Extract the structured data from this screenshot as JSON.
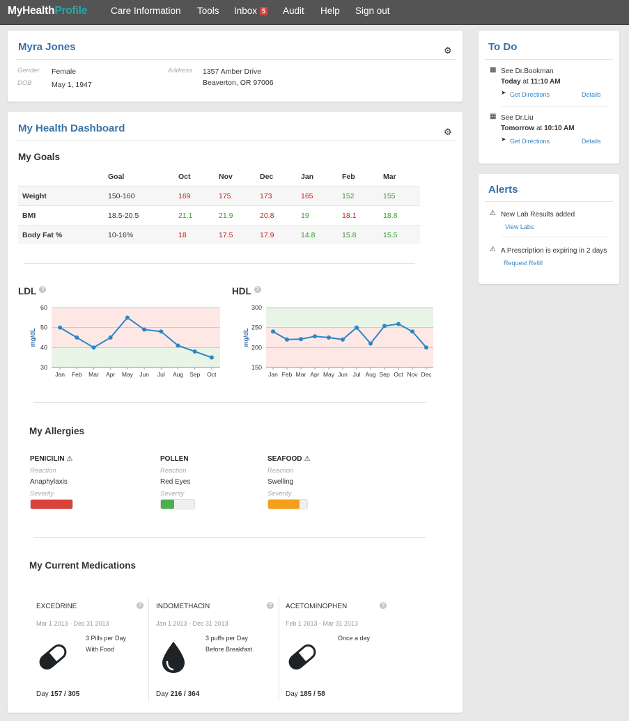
{
  "navbar": {
    "brand_main": "MyHealth",
    "brand_accent": "Profile",
    "items": [
      {
        "label": "Care Information"
      },
      {
        "label": "Tools"
      },
      {
        "label": "Inbox",
        "badge": "5"
      },
      {
        "label": "Audit"
      },
      {
        "label": "Help"
      },
      {
        "label": "Sign out"
      }
    ]
  },
  "patient": {
    "name": "Myra Jones",
    "gender_label": "Gender",
    "gender": "Female",
    "dob_label": "DOB",
    "dob": "May 1, 1947",
    "address_label": "Address",
    "address_line1": "1357 Amber Drive",
    "address_line2": "Beaverton, OR 97006"
  },
  "dashboard": {
    "title": "My Health Dashboard",
    "goals": {
      "title": "My Goals",
      "headers": [
        "Goal",
        "Oct",
        "Nov",
        "Dec",
        "Jan",
        "Feb",
        "Mar"
      ],
      "rows": [
        {
          "name": "Weight",
          "goal": "150-160",
          "values": [
            "169",
            "175",
            "173",
            "165",
            "152",
            "155"
          ],
          "status": [
            "bad",
            "bad",
            "bad",
            "bad",
            "good",
            "good"
          ]
        },
        {
          "name": "BMI",
          "goal": "18.5-20.5",
          "values": [
            "21.1",
            "21.9",
            "20.8",
            "19",
            "18.1",
            "18.8"
          ],
          "status": [
            "good",
            "good",
            "bad",
            "good",
            "bad",
            "good"
          ]
        },
        {
          "name": "Body Fat %",
          "goal": "10-16%",
          "values": [
            "18",
            "17.5",
            "17.9",
            "14.8",
            "15.8",
            "15.5"
          ],
          "status": [
            "bad",
            "bad",
            "bad",
            "good",
            "good",
            "good"
          ]
        }
      ]
    },
    "ldl": {
      "title": "LDL",
      "ylabel": "mg/dL",
      "yticks": [
        "60",
        "50",
        "40",
        "30"
      ],
      "months": [
        "Jan",
        "Feb",
        "Mar",
        "Apr",
        "May",
        "Jun",
        "Jul",
        "Aug",
        "Sep",
        "Oct"
      ]
    },
    "hdl": {
      "title": "HDL",
      "ylabel": "mg/dL",
      "yticks": [
        "300",
        "250",
        "200",
        "150"
      ],
      "months": [
        "Jan",
        "Feb",
        "Mar",
        "Apr",
        "May",
        "Jun",
        "Jul",
        "Aug",
        "Sep",
        "Oct",
        "Nov",
        "Dec"
      ]
    },
    "allergies": {
      "title": "My Allergies",
      "reaction_label": "Reaction",
      "severity_label": "Severity",
      "items": [
        {
          "name": "PENICILIN",
          "warning": true,
          "reaction": "Anaphylaxis",
          "severity": 1.0,
          "color": "#d9433b"
        },
        {
          "name": "POLLEN",
          "warning": false,
          "reaction": "Red Eyes",
          "severity": 0.4,
          "color": "#4caf50"
        },
        {
          "name": "SEAFOOD",
          "warning": true,
          "reaction": "Swelling",
          "severity": 0.8,
          "color": "#f5a01a"
        }
      ]
    },
    "medications": {
      "title": "My Current Medications",
      "day_label": "Day",
      "items": [
        {
          "name": "EXCEDRINE",
          "dates": "Mar 1 2013 - Dec 31 2013",
          "instr1": "3 Pills per Day",
          "instr2": "With Food",
          "icon": "pill-icon",
          "day": "157 / 305"
        },
        {
          "name": "INDOMETHACIN",
          "dates": "Jan 1 2013 - Dec 31 2013",
          "instr1": "3 puffs per Day",
          "instr2": "Before Breakfast",
          "icon": "drop-icon",
          "day": "216 / 364"
        },
        {
          "name": "ACETOMINOPHEN",
          "dates": "Feb 1 2013 - Mar 31 2013",
          "instr1": "Once a day",
          "instr2": "",
          "icon": "pill-icon",
          "day": "185 / 58"
        }
      ]
    }
  },
  "chart_data": [
    {
      "type": "line",
      "title": "LDL",
      "ylabel": "mg/dL",
      "x": [
        "Jan",
        "Feb",
        "Mar",
        "Apr",
        "May",
        "Jun",
        "Jul",
        "Aug",
        "Sep",
        "Oct"
      ],
      "values": [
        50,
        45,
        40,
        45,
        55,
        49,
        48,
        41,
        38,
        35
      ],
      "ylim": [
        30,
        60
      ],
      "bands": [
        {
          "from": 40,
          "to": 60,
          "color": "#fde8e6"
        },
        {
          "from": 30,
          "to": 40,
          "color": "#e8f4e6"
        }
      ],
      "line_color": "#2b86c5"
    },
    {
      "type": "line",
      "title": "HDL",
      "ylabel": "mg/dL",
      "x": [
        "Jan",
        "Feb",
        "Mar",
        "Apr",
        "May",
        "Jun",
        "Jul",
        "Aug",
        "Sep",
        "Oct",
        "Nov",
        "Dec"
      ],
      "values": [
        240,
        220,
        221,
        228,
        225,
        220,
        250,
        210,
        254,
        259,
        240,
        200
      ],
      "ylim": [
        150,
        300
      ],
      "bands": [
        {
          "from": 250,
          "to": 300,
          "color": "#e8f4e6"
        },
        {
          "from": 150,
          "to": 250,
          "color": "#fde8e6"
        }
      ],
      "line_color": "#2b86c5"
    }
  ],
  "todo": {
    "title": "To Do",
    "items": [
      {
        "title": "See Dr.Bookman",
        "when": "Today",
        "at": "at",
        "time": "11:10 AM",
        "directions": "Get Directions",
        "details": "Details"
      },
      {
        "title": "See Dr.Liu",
        "when": "Tomorrow",
        "at": "at",
        "time": "10:10 AM",
        "directions": "Get Directions",
        "details": "Details"
      }
    ]
  },
  "alerts": {
    "title": "Alerts",
    "items": [
      {
        "text": "New Lab Results added",
        "link": "View Labs"
      },
      {
        "text": "A Prescription is expiring in 2 days",
        "link": "Request Refill"
      }
    ]
  }
}
